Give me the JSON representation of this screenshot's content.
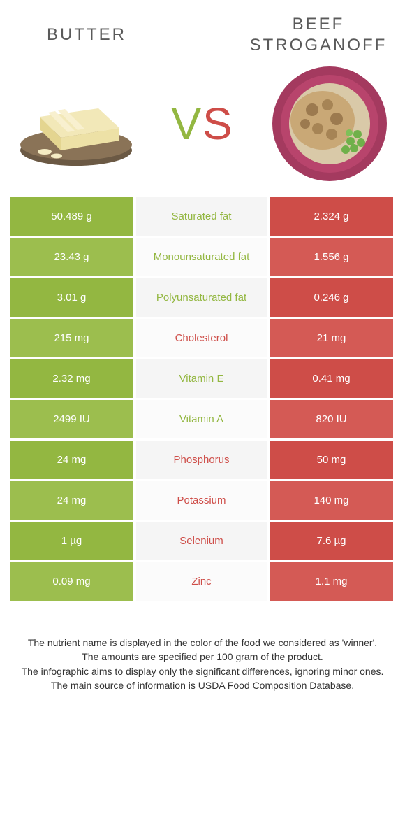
{
  "colors": {
    "green": "#93b741",
    "green_alt": "#9cbe4e",
    "red": "#ce4d48",
    "red_alt": "#d45a55",
    "mid_bg": "#f5f5f5",
    "mid_bg_alt": "#fbfbfb",
    "footer_text": "#333333"
  },
  "food_left": {
    "title": "Butter"
  },
  "food_right": {
    "title": "Beef Stroganoff"
  },
  "vs_label": "VS",
  "rows": [
    {
      "left": "50.489 g",
      "mid": "Saturated fat",
      "right": "2.324 g",
      "winner": "left"
    },
    {
      "left": "23.43 g",
      "mid": "Monounsaturated fat",
      "right": "1.556 g",
      "winner": "left"
    },
    {
      "left": "3.01 g",
      "mid": "Polyunsaturated fat",
      "right": "0.246 g",
      "winner": "left"
    },
    {
      "left": "215 mg",
      "mid": "Cholesterol",
      "right": "21 mg",
      "winner": "right"
    },
    {
      "left": "2.32 mg",
      "mid": "Vitamin E",
      "right": "0.41 mg",
      "winner": "left"
    },
    {
      "left": "2499 IU",
      "mid": "Vitamin A",
      "right": "820 IU",
      "winner": "left"
    },
    {
      "left": "24 mg",
      "mid": "Phosphorus",
      "right": "50 mg",
      "winner": "right"
    },
    {
      "left": "24 mg",
      "mid": "Potassium",
      "right": "140 mg",
      "winner": "right"
    },
    {
      "left": "1 µg",
      "mid": "Selenium",
      "right": "7.6 µg",
      "winner": "right"
    },
    {
      "left": "0.09 mg",
      "mid": "Zinc",
      "right": "1.1 mg",
      "winner": "right"
    }
  ],
  "footer": {
    "line1": "The nutrient name is displayed in the color of the food we considered as 'winner'.",
    "line2": "The amounts are specified per 100 gram of the product.",
    "line3": "The infographic aims to display only the significant differences, ignoring minor ones.",
    "line4": "The main source of information is USDA Food Composition Database."
  }
}
